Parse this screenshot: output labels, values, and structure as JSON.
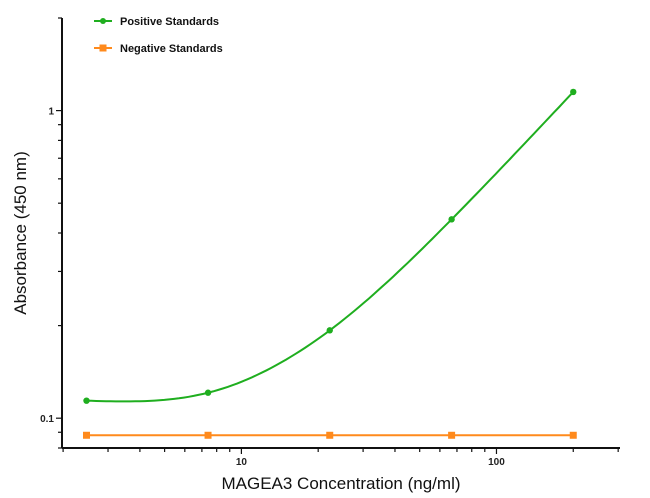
{
  "chart_data": {
    "type": "line",
    "title": "",
    "xlabel": "MAGEA3 Concentration (ng/ml)",
    "ylabel": "Absorbance (450 nm)",
    "x_scale": "log",
    "y_scale": "log",
    "xlim": [
      1.98,
      305
    ],
    "ylim": [
      0.08,
      2.0
    ],
    "x_ticks": [
      {
        "value": 10,
        "label": "10"
      },
      {
        "value": 100,
        "label": "100"
      }
    ],
    "y_ticks": [
      {
        "value": 0.1,
        "label": "0.1"
      },
      {
        "value": 1,
        "label": "1"
      }
    ],
    "grid": false,
    "legend_position": "top-left",
    "series": [
      {
        "name": "Positive Standards",
        "color": "#1fae1f",
        "marker": "circle",
        "fit_curve": true,
        "x": [
          2.47,
          7.4,
          22.2,
          66.7,
          200
        ],
        "y": [
          0.114,
          0.121,
          0.193,
          0.443,
          1.15
        ]
      },
      {
        "name": "Negative Standards",
        "color": "#ff8a1c",
        "marker": "square",
        "fit_curve": false,
        "x": [
          2.47,
          7.4,
          22.2,
          66.7,
          200
        ],
        "y": [
          0.088,
          0.088,
          0.088,
          0.088,
          0.088
        ]
      }
    ]
  }
}
